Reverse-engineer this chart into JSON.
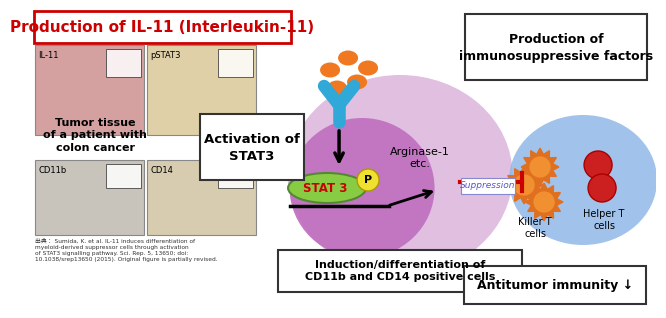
{
  "title": "Production of IL-11 (Interleukin-11)",
  "title_color": "#cc0000",
  "title_box_color": "#cc0000",
  "bg_color": "#ffffff",
  "activation_stat3_text": "Activation of\nSTAT3",
  "production_immuno_text": "Production of\nimmunosuppressive factors",
  "induction_text": "Induction/differentiation of\nCD11b and CD14 positive cells",
  "antitumor_text": "Antitumor immunity ↓",
  "suppression_text": "Suppression",
  "arginase_text": "Arginase-1\netc.",
  "stat3_text": "STAT 3",
  "p_text": "P",
  "il11_text": "IL-11",
  "pstat3_text": "pSTAT3",
  "cd11b_text": "CD11b",
  "cd14_text": "CD14",
  "tumor_text": "Tumor tissue\nof a patient with\ncolon cancer",
  "killer_t_text": "Killer T\ncells",
  "helper_t_text": "Helper T\ncells",
  "reference_text": "出典： Sumida, K. et al. IL-11 induces differentiation of\nmyeloid-derived suppressor cells through activation\nof STAT3 signalling pathway. Sci. Rep. 5, 13650; doi:\n10.1038/srep13650 (2015). Original figure is partially revised.",
  "large_ellipse_color": "#ddb8dd",
  "small_ellipse_color": "#c070c0",
  "il11_dot_color": "#f07820",
  "receptor_color": "#30a8d8",
  "stat3_box_color": "#88cc44",
  "stat3_text_color": "#cc0000",
  "p_circle_color": "#f0e030",
  "killer_t_sun_color": "#e07020",
  "killer_t_inner_color": "#f09030",
  "helper_t_circle_color": "#cc2020",
  "t_cell_bg_color": "#90b8e8",
  "suppression_line_color": "#cc0000",
  "suppression_text_color": "#5555cc"
}
